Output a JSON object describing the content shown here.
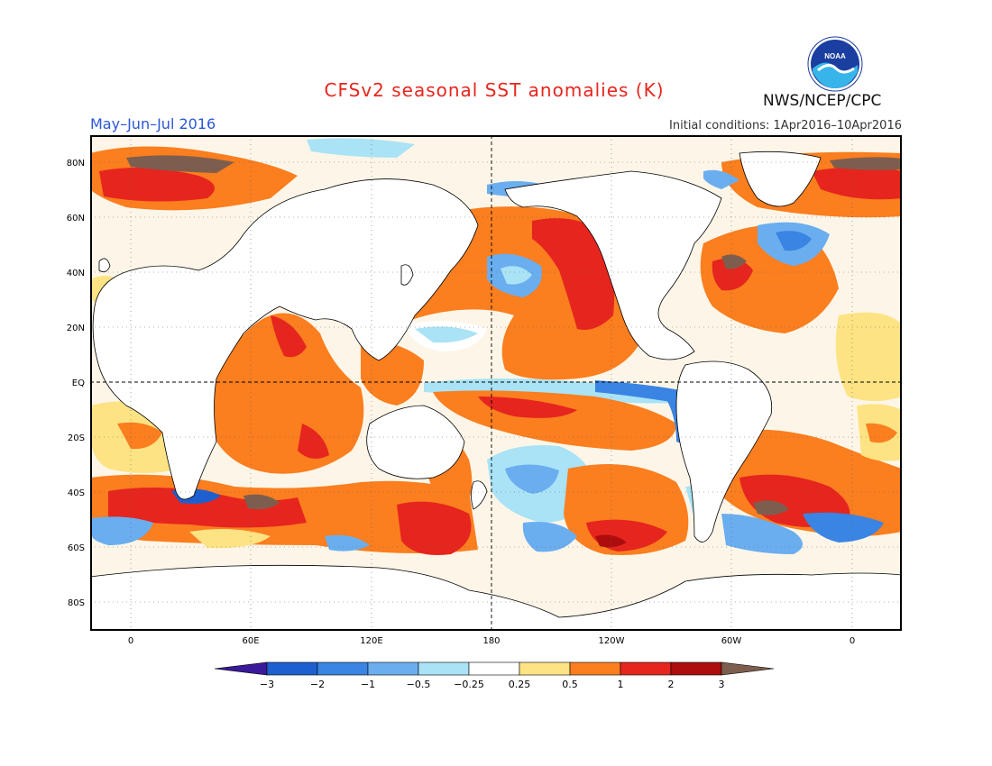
{
  "header": {
    "title": "CFSv2 seasonal SST anomalies (K)",
    "agency": "NWS/NCEP/CPC",
    "period": "May–Jun–Jul 2016",
    "initial_conditions": "Initial conditions: 1Apr2016–10Apr2016",
    "logo_text": "NOAA"
  },
  "map": {
    "lat_labels": [
      "80N",
      "60N",
      "40N",
      "20N",
      "EQ",
      "20S",
      "40S",
      "60S",
      "80S"
    ],
    "lon_labels": [
      "0",
      "60E",
      "120E",
      "180",
      "120W",
      "60W",
      "0"
    ]
  },
  "colorbar": {
    "ticks": [
      "−3",
      "−2",
      "−1",
      "−0.5",
      "−0.25",
      "0.25",
      "0.5",
      "1",
      "2",
      "3"
    ],
    "colors": [
      "#3a1a9a",
      "#1e5fcf",
      "#3a84e3",
      "#6aaef0",
      "#a9e3f5",
      "#ffffff",
      "#fde383",
      "#fb7e1f",
      "#e6251e",
      "#ad0d0d",
      "#7d5e4e"
    ]
  }
}
